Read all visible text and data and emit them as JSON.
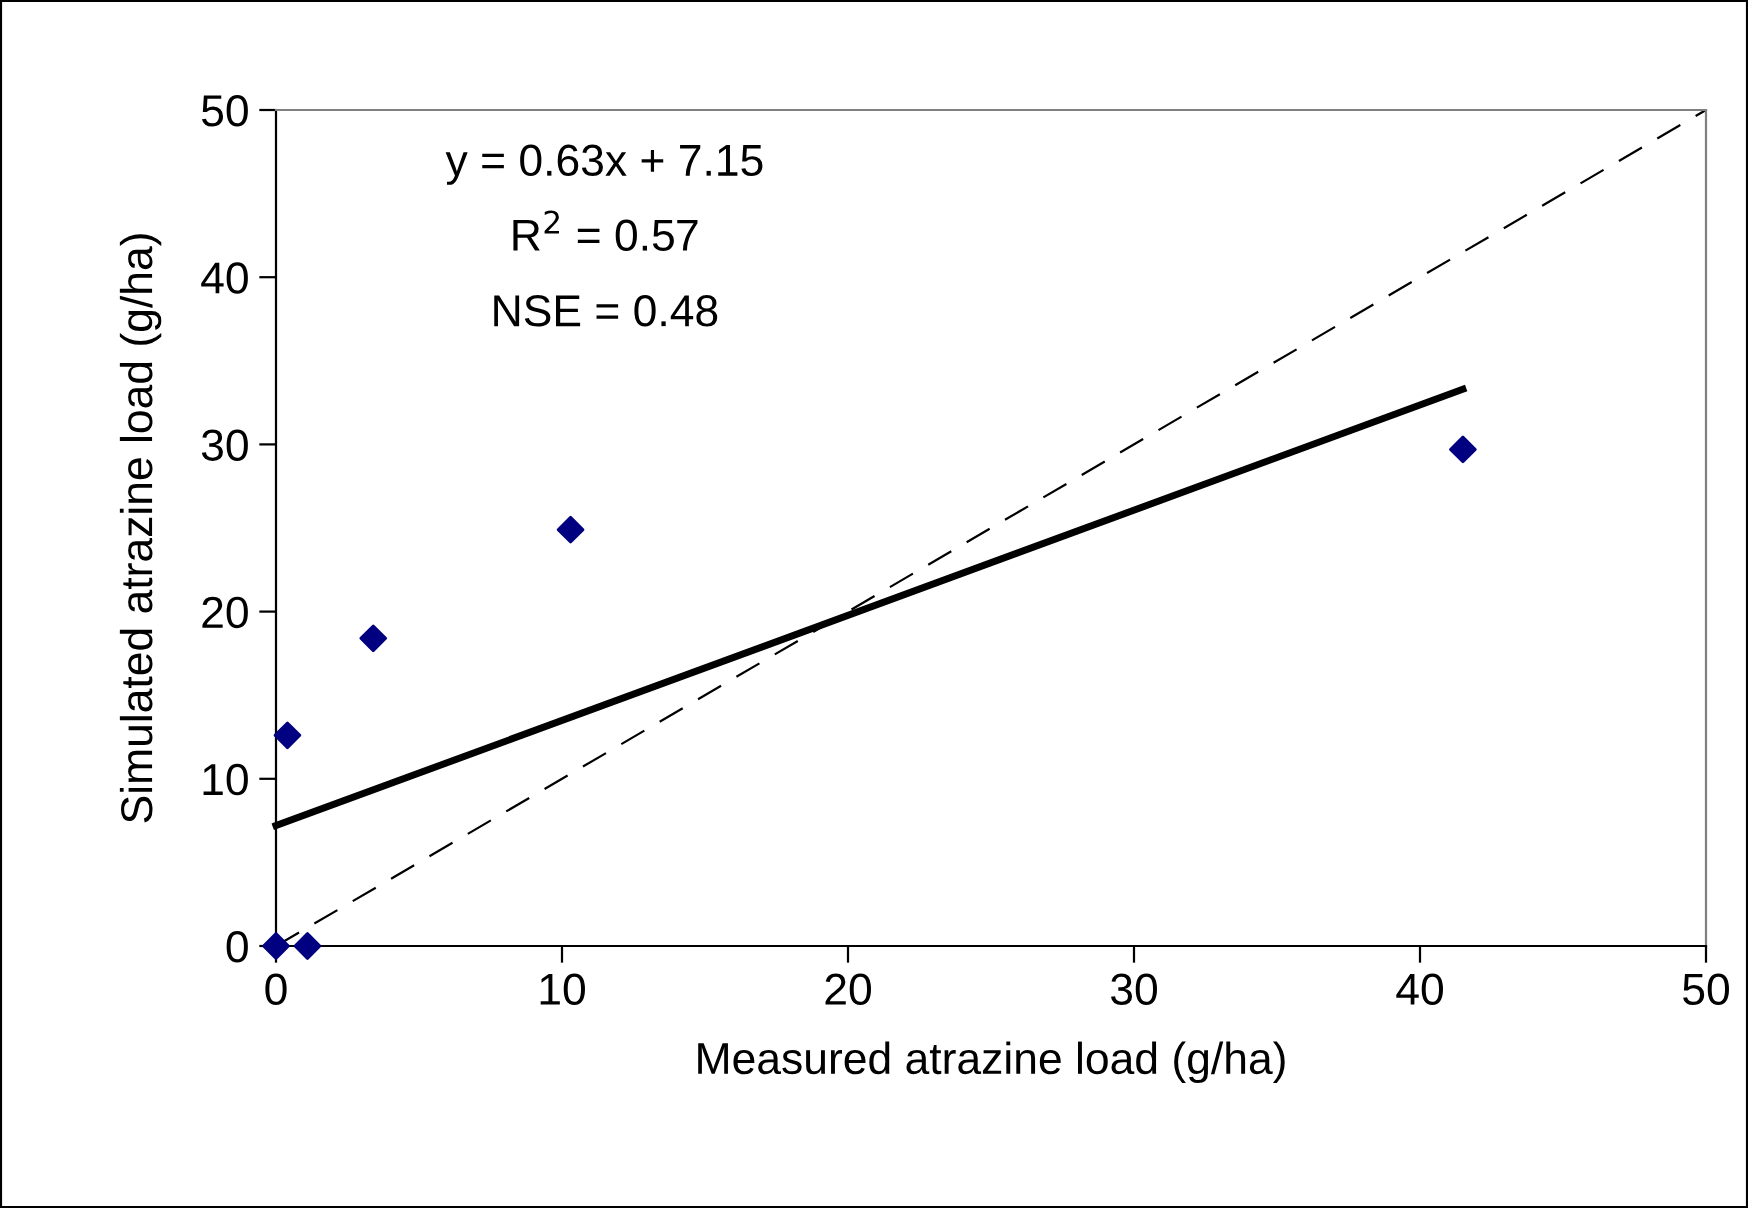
{
  "chart_data": {
    "type": "scatter",
    "xlabel": "Measured atrazine load (g/ha)",
    "ylabel": "Simulated atrazine load (g/ha)",
    "xlim": [
      0,
      50
    ],
    "ylim": [
      0,
      50
    ],
    "xticks": [
      0,
      10,
      20,
      30,
      40,
      50
    ],
    "yticks": [
      0,
      10,
      20,
      30,
      40,
      50
    ],
    "grid": false,
    "legend": false,
    "marker": "diamond",
    "series": [
      {
        "color": "#000080",
        "x": [
          0,
          1.1,
          0.4,
          3.4,
          10.3,
          41.5
        ],
        "values": [
          0,
          0,
          12.6,
          18.4,
          24.9,
          29.7
        ]
      },
      {
        "type": "line",
        "color": "#000000",
        "marker": "none",
        "line_style": "solid",
        "x": [
          0,
          41.5
        ],
        "values": [
          7.2,
          33.3
        ]
      },
      {
        "type": "line",
        "color": "#000000",
        "marker": "none",
        "line_style": "dashed",
        "x": [
          0,
          50
        ],
        "values": [
          0,
          50
        ]
      }
    ],
    "annotations": [
      "y = 0.63x + 7.15",
      "R$^{2}$ = 0.57",
      "NSE = 0.48"
    ]
  }
}
